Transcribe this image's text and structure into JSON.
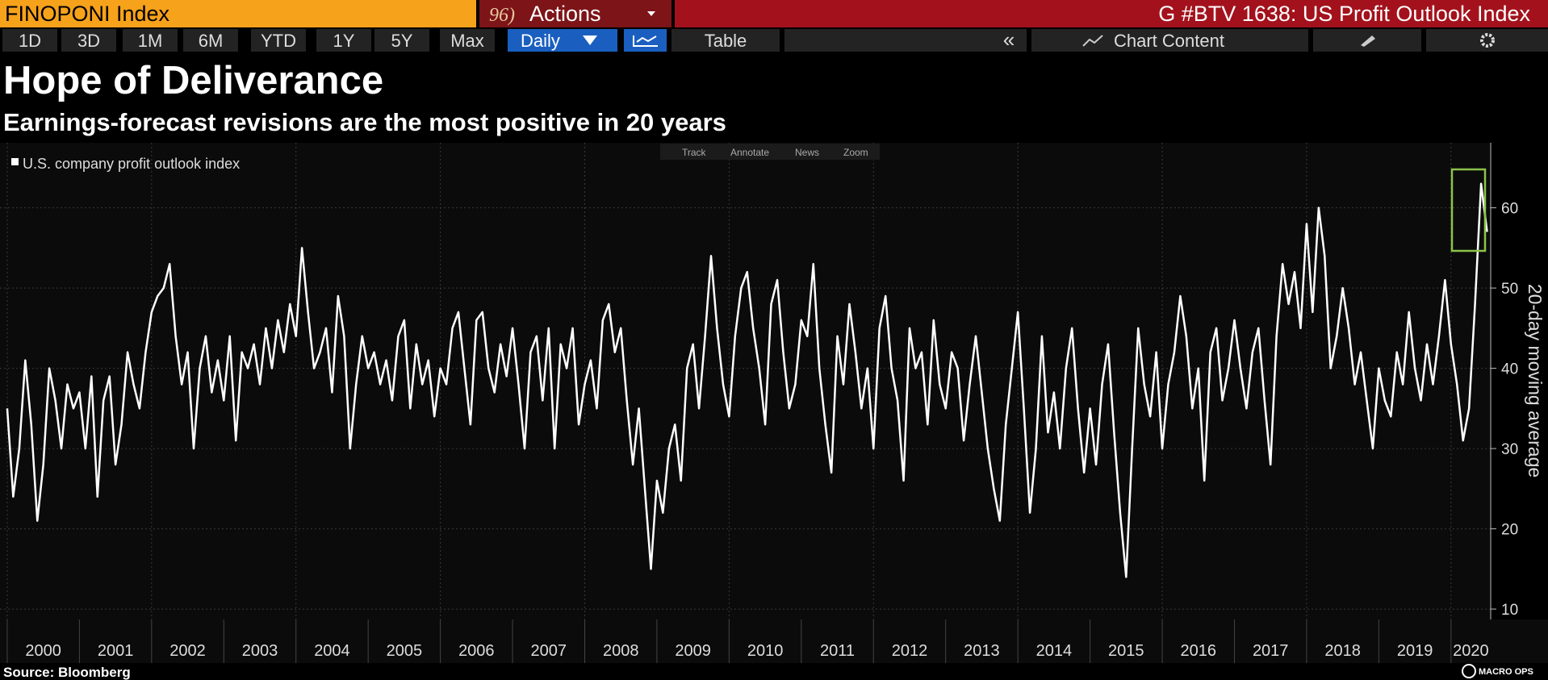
{
  "header": {
    "security": "FINOPONI Index",
    "actions_code": "96)",
    "actions": "Actions",
    "function": "G #BTV 1638: US Profit Outlook Index"
  },
  "toolbar": {
    "ranges": [
      "1D",
      "3D",
      "1M",
      "6M",
      "YTD",
      "1Y",
      "5Y",
      "Max"
    ],
    "frequency": "Daily",
    "table": "Table",
    "collapse": "«",
    "chart_content": "Chart Content"
  },
  "chart_tools": [
    "Track",
    "Annotate",
    "News",
    "Zoom"
  ],
  "chart_data": {
    "type": "line",
    "title": "Hope of Deliverance",
    "subtitle": "Earnings-forecast revisions are the most positive in 20 years",
    "y_axis_label": "20-day moving average",
    "y_axis_side": "right",
    "grid": true,
    "xlim": [
      1999.9,
      2020.55
    ],
    "xticks": [
      2000,
      2001,
      2002,
      2003,
      2004,
      2005,
      2006,
      2007,
      2008,
      2009,
      2010,
      2011,
      2012,
      2013,
      2014,
      2015,
      2016,
      2017,
      2018,
      2019,
      2020
    ],
    "ylim": [
      8.7,
      68.1
    ],
    "yticks": [
      10,
      20,
      30,
      40,
      50,
      60
    ],
    "x": [
      2000,
      2000.083,
      2000.167,
      2000.25,
      2000.333,
      2000.417,
      2000.5,
      2000.583,
      2000.667,
      2000.75,
      2000.833,
      2000.917,
      2001,
      2001.083,
      2001.167,
      2001.25,
      2001.333,
      2001.417,
      2001.5,
      2001.583,
      2001.667,
      2001.75,
      2001.833,
      2001.917,
      2002,
      2002.083,
      2002.167,
      2002.25,
      2002.333,
      2002.417,
      2002.5,
      2002.583,
      2002.667,
      2002.75,
      2002.833,
      2002.917,
      2003,
      2003.083,
      2003.167,
      2003.25,
      2003.333,
      2003.417,
      2003.5,
      2003.583,
      2003.667,
      2003.75,
      2003.833,
      2003.917,
      2004,
      2004.083,
      2004.167,
      2004.25,
      2004.333,
      2004.417,
      2004.5,
      2004.583,
      2004.667,
      2004.75,
      2004.833,
      2004.917,
      2005,
      2005.083,
      2005.167,
      2005.25,
      2005.333,
      2005.417,
      2005.5,
      2005.583,
      2005.667,
      2005.75,
      2005.833,
      2005.917,
      2006,
      2006.083,
      2006.167,
      2006.25,
      2006.333,
      2006.417,
      2006.5,
      2006.583,
      2006.667,
      2006.75,
      2006.833,
      2006.917,
      2007,
      2007.083,
      2007.167,
      2007.25,
      2007.333,
      2007.417,
      2007.5,
      2007.583,
      2007.667,
      2007.75,
      2007.833,
      2007.917,
      2008,
      2008.083,
      2008.167,
      2008.25,
      2008.333,
      2008.417,
      2008.5,
      2008.583,
      2008.667,
      2008.75,
      2008.833,
      2008.917,
      2009,
      2009.083,
      2009.167,
      2009.25,
      2009.333,
      2009.417,
      2009.5,
      2009.583,
      2009.667,
      2009.75,
      2009.833,
      2009.917,
      2010,
      2010.083,
      2010.167,
      2010.25,
      2010.333,
      2010.417,
      2010.5,
      2010.583,
      2010.667,
      2010.75,
      2010.833,
      2010.917,
      2011,
      2011.083,
      2011.167,
      2011.25,
      2011.333,
      2011.417,
      2011.5,
      2011.583,
      2011.667,
      2011.75,
      2011.833,
      2011.917,
      2012,
      2012.083,
      2012.167,
      2012.25,
      2012.333,
      2012.417,
      2012.5,
      2012.583,
      2012.667,
      2012.75,
      2012.833,
      2012.917,
      2013,
      2013.083,
      2013.167,
      2013.25,
      2013.333,
      2013.417,
      2013.5,
      2013.583,
      2013.667,
      2013.75,
      2013.833,
      2013.917,
      2014,
      2014.083,
      2014.167,
      2014.25,
      2014.333,
      2014.417,
      2014.5,
      2014.583,
      2014.667,
      2014.75,
      2014.833,
      2014.917,
      2015,
      2015.083,
      2015.167,
      2015.25,
      2015.333,
      2015.417,
      2015.5,
      2015.583,
      2015.667,
      2015.75,
      2015.833,
      2015.917,
      2016,
      2016.083,
      2016.167,
      2016.25,
      2016.333,
      2016.417,
      2016.5,
      2016.583,
      2016.667,
      2016.75,
      2016.833,
      2016.917,
      2017,
      2017.083,
      2017.167,
      2017.25,
      2017.333,
      2017.417,
      2017.5,
      2017.583,
      2017.667,
      2017.75,
      2017.833,
      2017.917,
      2018,
      2018.083,
      2018.167,
      2018.25,
      2018.333,
      2018.417,
      2018.5,
      2018.583,
      2018.667,
      2018.75,
      2018.833,
      2018.917,
      2019,
      2019.083,
      2019.167,
      2019.25,
      2019.333,
      2019.417,
      2019.5,
      2019.583,
      2019.667,
      2019.75,
      2019.833,
      2019.917,
      2020,
      2020.083,
      2020.167,
      2020.25,
      2020.333,
      2020.417,
      2020.5
    ],
    "series": [
      {
        "name": "U.S. company profit outlook index",
        "color": "#ffffff",
        "values": [
          35,
          24,
          30,
          41,
          33,
          21,
          28,
          40,
          36,
          30,
          38,
          35,
          37,
          30,
          39,
          24,
          36,
          39,
          28,
          33,
          42,
          38,
          35,
          42,
          47,
          49,
          50,
          53,
          44,
          38,
          42,
          30,
          40,
          44,
          37,
          41,
          36,
          44,
          31,
          42,
          40,
          43,
          38,
          45,
          40,
          46,
          42,
          48,
          44,
          55,
          47,
          40,
          42,
          45,
          37,
          49,
          44,
          30,
          38,
          44,
          40,
          42,
          38,
          41,
          36,
          44,
          46,
          35,
          43,
          38,
          41,
          34,
          40,
          38,
          45,
          47,
          40,
          33,
          46,
          47,
          40,
          37,
          43,
          39,
          45,
          38,
          30,
          42,
          44,
          36,
          45,
          30,
          43,
          40,
          45,
          33,
          38,
          41,
          35,
          46,
          48,
          42,
          45,
          36,
          28,
          35,
          25,
          15,
          26,
          22,
          30,
          33,
          26,
          40,
          43,
          35,
          44,
          54,
          45,
          38,
          34,
          44,
          50,
          52,
          45,
          40,
          33,
          48,
          51,
          42,
          35,
          38,
          46,
          44,
          53,
          40,
          33,
          27,
          44,
          38,
          48,
          42,
          35,
          40,
          30,
          45,
          49,
          40,
          36,
          26,
          45,
          40,
          42,
          33,
          46,
          38,
          35,
          42,
          40,
          31,
          38,
          44,
          37,
          30,
          25,
          21,
          33,
          40,
          47,
          35,
          22,
          30,
          44,
          32,
          37,
          30,
          40,
          45,
          35,
          27,
          35,
          28,
          38,
          43,
          32,
          22,
          14,
          30,
          45,
          38,
          34,
          42,
          30,
          38,
          42,
          49,
          44,
          35,
          40,
          26,
          42,
          45,
          36,
          40,
          46,
          40,
          35,
          42,
          45,
          36,
          28,
          44,
          53,
          48,
          52,
          45,
          58,
          47,
          60,
          54,
          40,
          44,
          50,
          45,
          38,
          42,
          36,
          30,
          40,
          36,
          34,
          42,
          38,
          47,
          40,
          36,
          43,
          38,
          44,
          51,
          43,
          38,
          31,
          35,
          48,
          63,
          57
        ]
      }
    ]
  },
  "source": "Source: Bloomberg",
  "logo": "MACRO OPS"
}
